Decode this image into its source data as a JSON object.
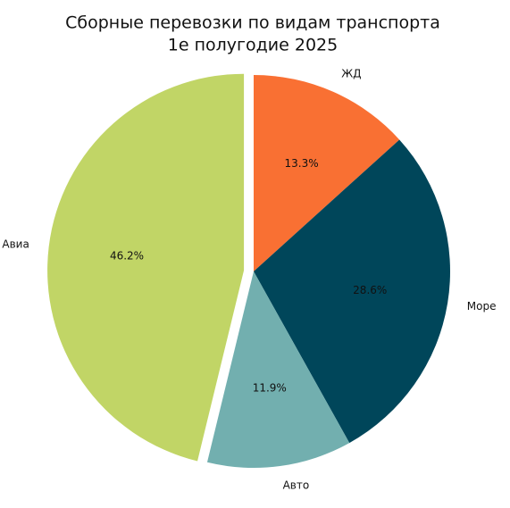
{
  "chart_data": {
    "type": "pie",
    "title": [
      "Сборные перевозки по видам транспорта",
      "1е полугодие 2025"
    ],
    "categories": [
      "ЖД",
      "Море",
      "Авто",
      "Авиа"
    ],
    "values": [
      13.3,
      28.6,
      11.9,
      46.2
    ],
    "value_labels": [
      "13.3%",
      "28.6%",
      "11.9%",
      "46.2%"
    ],
    "colors": [
      "#f97033",
      "#00465a",
      "#72afaf",
      "#c1d566"
    ],
    "explode": [
      0,
      0,
      0,
      0.05
    ]
  }
}
